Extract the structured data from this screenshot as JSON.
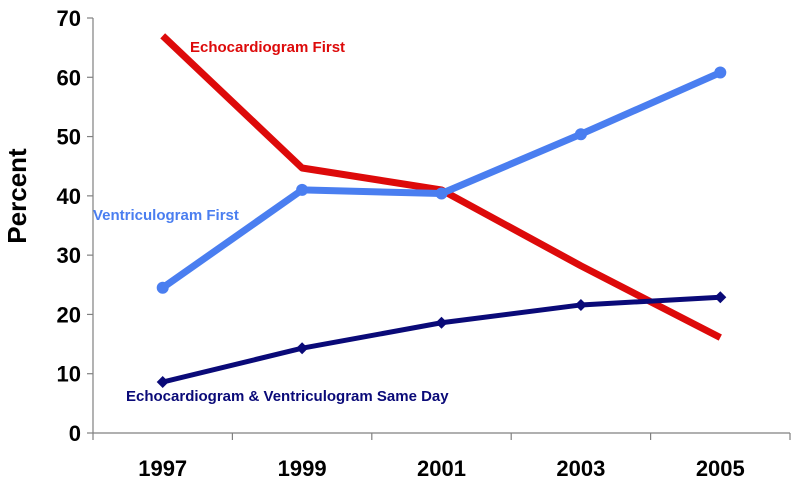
{
  "chart_data": {
    "type": "line",
    "title": "",
    "xlabel": "",
    "ylabel": "Percent",
    "x": [
      "1997",
      "1999",
      "2001",
      "2003",
      "2005"
    ],
    "ylim": [
      0,
      70
    ],
    "yticks": [
      "0",
      "10",
      "20",
      "30",
      "40",
      "50",
      "60",
      "70"
    ],
    "grid": false,
    "legend": "inline labels",
    "series": [
      {
        "name": "Echocardiogram First",
        "color": "#dd0a0a",
        "marker": "none",
        "values": [
          67,
          44.7,
          41,
          28.2,
          16.1
        ]
      },
      {
        "name": "Ventriculogram First",
        "color": "#4a7ef0",
        "marker": "circle",
        "values": [
          24.5,
          41,
          40.4,
          50.4,
          60.8
        ]
      },
      {
        "name": "Echocardiogram & Ventriculogram Same Day",
        "color": "#0a0a78",
        "marker": "diamond",
        "values": [
          8.6,
          14.3,
          18.6,
          21.6,
          22.9
        ]
      }
    ]
  }
}
